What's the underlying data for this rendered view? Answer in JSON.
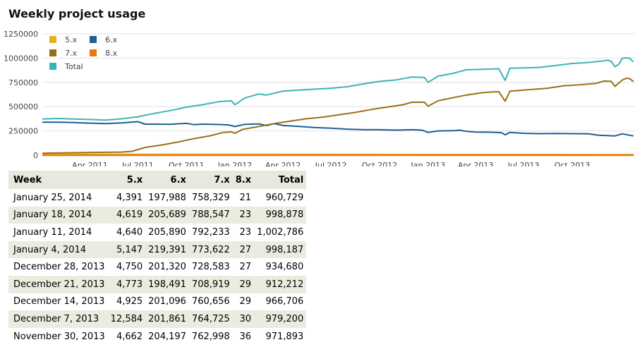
{
  "page": {
    "title": "Weekly project usage"
  },
  "chart_data": {
    "type": "line",
    "title": "",
    "xlabel": "",
    "ylabel": "",
    "ylim": [
      0,
      1250000
    ],
    "xlim": [
      "2011-01-01",
      "2014-01-28"
    ],
    "yticks": [
      "0",
      "250000",
      "500000",
      "750000",
      "1000000",
      "1250000"
    ],
    "xticks": [
      {
        "date": "2011-04-01",
        "label": "Apr 2011"
      },
      {
        "date": "2011-07-01",
        "label": "Jul 2011"
      },
      {
        "date": "2011-10-01",
        "label": "Oct 2011"
      },
      {
        "date": "2012-01-01",
        "label": "Jan 2012"
      },
      {
        "date": "2012-04-01",
        "label": "Apr 2012"
      },
      {
        "date": "2012-07-01",
        "label": "Jul 2012"
      },
      {
        "date": "2012-10-01",
        "label": "Oct 2012"
      },
      {
        "date": "2013-01-01",
        "label": "Jan 2013"
      },
      {
        "date": "2013-04-01",
        "label": "Apr 2013"
      },
      {
        "date": "2013-07-01",
        "label": "Jul 2013"
      },
      {
        "date": "2013-10-01",
        "label": "Oct 2013"
      }
    ],
    "grid": "horizontal",
    "legend_position": "top-left",
    "series": [
      {
        "name": "5.x",
        "color": "#e6b21c",
        "points": [
          [
            "2011-01-01",
            8000
          ],
          [
            "2012-01-01",
            7000
          ],
          [
            "2013-01-01",
            6000
          ],
          [
            "2014-01-25",
            4391
          ]
        ]
      },
      {
        "name": "6.x",
        "color": "#1f5f96",
        "points": [
          [
            "2011-01-01",
            340000
          ],
          [
            "2011-02-01",
            340000
          ],
          [
            "2011-03-01",
            336000
          ],
          [
            "2011-04-01",
            330000
          ],
          [
            "2011-05-01",
            325000
          ],
          [
            "2011-06-01",
            332000
          ],
          [
            "2011-07-01",
            345000
          ],
          [
            "2011-07-15",
            320000
          ],
          [
            "2011-08-01",
            320000
          ],
          [
            "2011-09-01",
            318000
          ],
          [
            "2011-10-01",
            328000
          ],
          [
            "2011-10-15",
            315000
          ],
          [
            "2011-11-01",
            320000
          ],
          [
            "2011-12-01",
            316000
          ],
          [
            "2011-12-20",
            312000
          ],
          [
            "2012-01-01",
            295000
          ],
          [
            "2012-01-20",
            318000
          ],
          [
            "2012-02-15",
            322000
          ],
          [
            "2012-03-01",
            305000
          ],
          [
            "2012-03-15",
            325000
          ],
          [
            "2012-04-01",
            306000
          ],
          [
            "2012-05-01",
            296000
          ],
          [
            "2012-06-01",
            284000
          ],
          [
            "2012-07-01",
            278000
          ],
          [
            "2012-08-01",
            268000
          ],
          [
            "2012-09-01",
            262000
          ],
          [
            "2012-10-01",
            262000
          ],
          [
            "2012-11-01",
            258000
          ],
          [
            "2012-12-01",
            262000
          ],
          [
            "2012-12-20",
            258000
          ],
          [
            "2013-01-01",
            235000
          ],
          [
            "2013-01-20",
            250000
          ],
          [
            "2013-02-20",
            252000
          ],
          [
            "2013-03-01",
            258000
          ],
          [
            "2013-03-15",
            245000
          ],
          [
            "2013-04-01",
            238000
          ],
          [
            "2013-05-01",
            236000
          ],
          [
            "2013-05-20",
            232000
          ],
          [
            "2013-05-27",
            210000
          ],
          [
            "2013-06-05",
            235000
          ],
          [
            "2013-07-01",
            225000
          ],
          [
            "2013-08-01",
            222000
          ],
          [
            "2013-09-01",
            224000
          ],
          [
            "2013-10-01",
            222000
          ],
          [
            "2013-11-01",
            220000
          ],
          [
            "2013-11-20",
            205000
          ],
          [
            "2013-12-07",
            201861
          ],
          [
            "2013-12-21",
            198491
          ],
          [
            "2014-01-04",
            219391
          ],
          [
            "2014-01-18",
            205689
          ],
          [
            "2014-01-25",
            197988
          ]
        ]
      },
      {
        "name": "7.x",
        "color": "#9a7017",
        "points": [
          [
            "2011-01-01",
            20000
          ],
          [
            "2011-04-01",
            28000
          ],
          [
            "2011-06-01",
            32000
          ],
          [
            "2011-06-20",
            40000
          ],
          [
            "2011-07-15",
            80000
          ],
          [
            "2011-08-15",
            105000
          ],
          [
            "2011-09-15",
            135000
          ],
          [
            "2011-10-15",
            170000
          ],
          [
            "2011-11-15",
            200000
          ],
          [
            "2011-12-10",
            235000
          ],
          [
            "2011-12-25",
            240000
          ],
          [
            "2012-01-01",
            225000
          ],
          [
            "2012-01-15",
            265000
          ],
          [
            "2012-02-15",
            295000
          ],
          [
            "2012-03-15",
            325000
          ],
          [
            "2012-04-15",
            350000
          ],
          [
            "2012-05-15",
            375000
          ],
          [
            "2012-06-15",
            392000
          ],
          [
            "2012-07-15",
            415000
          ],
          [
            "2012-08-15",
            440000
          ],
          [
            "2012-09-15",
            470000
          ],
          [
            "2012-10-15",
            495000
          ],
          [
            "2012-11-15",
            520000
          ],
          [
            "2012-12-01",
            545000
          ],
          [
            "2012-12-25",
            545000
          ],
          [
            "2013-01-01",
            505000
          ],
          [
            "2013-01-20",
            560000
          ],
          [
            "2013-02-15",
            590000
          ],
          [
            "2013-03-15",
            620000
          ],
          [
            "2013-04-15",
            645000
          ],
          [
            "2013-05-15",
            655000
          ],
          [
            "2013-05-27",
            555000
          ],
          [
            "2013-06-05",
            660000
          ],
          [
            "2013-07-01",
            670000
          ],
          [
            "2013-08-15",
            690000
          ],
          [
            "2013-09-15",
            715000
          ],
          [
            "2013-10-15",
            725000
          ],
          [
            "2013-11-15",
            740000
          ],
          [
            "2013-11-30",
            762998
          ],
          [
            "2013-12-14",
            760656
          ],
          [
            "2013-12-21",
            708919
          ],
          [
            "2014-01-04",
            773622
          ],
          [
            "2014-01-11",
            792233
          ],
          [
            "2014-01-18",
            788547
          ],
          [
            "2014-01-25",
            758329
          ]
        ]
      },
      {
        "name": "8.x",
        "color": "#e87b10",
        "points": [
          [
            "2011-01-01",
            0
          ],
          [
            "2013-01-01",
            5
          ],
          [
            "2014-01-25",
            21
          ]
        ]
      },
      {
        "name": "Total",
        "color": "#3db4b4",
        "points": [
          [
            "2011-01-01",
            372000
          ],
          [
            "2011-02-01",
            378000
          ],
          [
            "2011-03-01",
            372000
          ],
          [
            "2011-04-01",
            368000
          ],
          [
            "2011-05-01",
            362000
          ],
          [
            "2011-06-01",
            375000
          ],
          [
            "2011-07-01",
            395000
          ],
          [
            "2011-08-01",
            430000
          ],
          [
            "2011-09-01",
            460000
          ],
          [
            "2011-10-01",
            495000
          ],
          [
            "2011-11-01",
            520000
          ],
          [
            "2011-12-01",
            550000
          ],
          [
            "2011-12-25",
            560000
          ],
          [
            "2012-01-01",
            520000
          ],
          [
            "2012-01-20",
            590000
          ],
          [
            "2012-02-15",
            630000
          ],
          [
            "2012-03-01",
            620000
          ],
          [
            "2012-04-01",
            660000
          ],
          [
            "2012-05-01",
            670000
          ],
          [
            "2012-06-01",
            680000
          ],
          [
            "2012-07-01",
            690000
          ],
          [
            "2012-08-01",
            705000
          ],
          [
            "2012-09-01",
            735000
          ],
          [
            "2012-10-01",
            760000
          ],
          [
            "2012-11-01",
            775000
          ],
          [
            "2012-12-01",
            805000
          ],
          [
            "2012-12-25",
            800000
          ],
          [
            "2013-01-01",
            750000
          ],
          [
            "2013-01-20",
            815000
          ],
          [
            "2013-02-15",
            840000
          ],
          [
            "2013-03-01",
            860000
          ],
          [
            "2013-03-15",
            880000
          ],
          [
            "2013-04-15",
            885000
          ],
          [
            "2013-05-15",
            890000
          ],
          [
            "2013-05-27",
            770000
          ],
          [
            "2013-06-05",
            895000
          ],
          [
            "2013-07-01",
            900000
          ],
          [
            "2013-08-01",
            905000
          ],
          [
            "2013-09-01",
            925000
          ],
          [
            "2013-10-01",
            945000
          ],
          [
            "2013-11-01",
            955000
          ],
          [
            "2013-11-30",
            971893
          ],
          [
            "2013-12-07",
            979200
          ],
          [
            "2013-12-14",
            966706
          ],
          [
            "2013-12-21",
            912212
          ],
          [
            "2013-12-28",
            934680
          ],
          [
            "2014-01-04",
            998187
          ],
          [
            "2014-01-11",
            1002786
          ],
          [
            "2014-01-18",
            998878
          ],
          [
            "2014-01-25",
            960729
          ]
        ]
      }
    ]
  },
  "table": {
    "headers": [
      "Week",
      "5.x",
      "6.x",
      "7.x",
      "8.x",
      "Total"
    ],
    "rows": [
      [
        "January 25, 2014",
        "4,391",
        "197,988",
        "758,329",
        "21",
        "960,729"
      ],
      [
        "January 18, 2014",
        "4,619",
        "205,689",
        "788,547",
        "23",
        "998,878"
      ],
      [
        "January 11, 2014",
        "4,640",
        "205,890",
        "792,233",
        "23",
        "1,002,786"
      ],
      [
        "January 4, 2014",
        "5,147",
        "219,391",
        "773,622",
        "27",
        "998,187"
      ],
      [
        "December 28, 2013",
        "4,750",
        "201,320",
        "728,583",
        "27",
        "934,680"
      ],
      [
        "December 21, 2013",
        "4,773",
        "198,491",
        "708,919",
        "29",
        "912,212"
      ],
      [
        "December 14, 2013",
        "4,925",
        "201,096",
        "760,656",
        "29",
        "966,706"
      ],
      [
        "December 7, 2013",
        "12,584",
        "201,861",
        "764,725",
        "30",
        "979,200"
      ],
      [
        "November 30, 2013",
        "4,662",
        "204,197",
        "762,998",
        "36",
        "971,893"
      ]
    ]
  }
}
